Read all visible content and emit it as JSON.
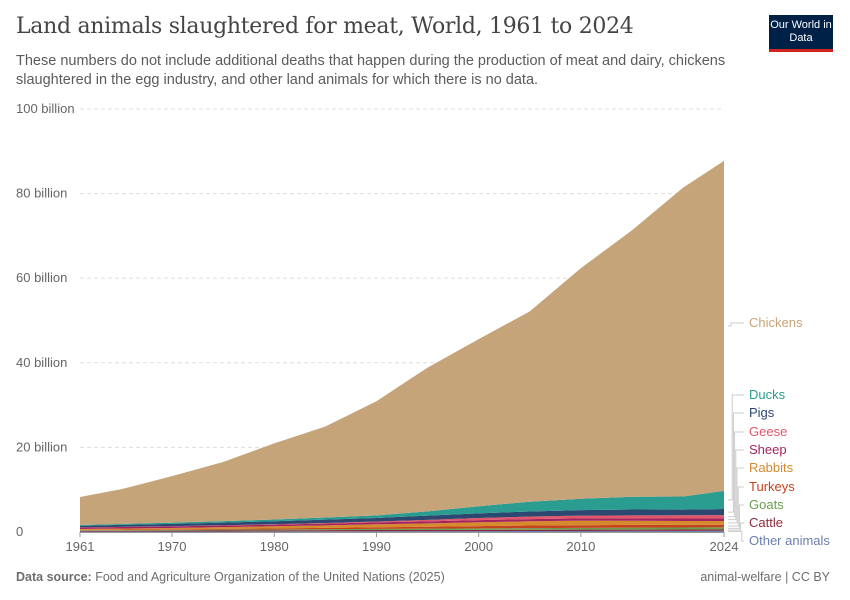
{
  "header": {
    "title": "Land animals slaughtered for meat, World, 1961 to 2024",
    "subtitle": "These numbers do not include additional deaths that happen during the production of meat and dairy, chickens slaughtered in the egg industry, and other land animals for which there is no data.",
    "logo": "Our World in Data"
  },
  "footer": {
    "source_label": "Data source:",
    "source": "Food and Agriculture Organization of the United Nations (2025)",
    "license": "animal-welfare | CC BY"
  },
  "chart_data": {
    "type": "area",
    "stacked": true,
    "title": "Land animals slaughtered for meat, World, 1961 to 2024",
    "xlabel": "",
    "ylabel": "",
    "unit": "billion",
    "ylim": [
      0,
      100
    ],
    "grid": true,
    "legend": "right",
    "y_ticks": [
      {
        "v": 0,
        "label": "0"
      },
      {
        "v": 20,
        "label": "20 billion"
      },
      {
        "v": 40,
        "label": "40 billion"
      },
      {
        "v": 60,
        "label": "60 billion"
      },
      {
        "v": 80,
        "label": "80 billion"
      },
      {
        "v": 100,
        "label": "100 billion"
      }
    ],
    "x_ticks": [
      "1961",
      "1970",
      "1980",
      "1990",
      "2000",
      "2010",
      "2024"
    ],
    "x": [
      1961,
      1965,
      1970,
      1975,
      1980,
      1985,
      1990,
      1995,
      2000,
      2005,
      2010,
      2015,
      2020,
      2024
    ],
    "series": [
      {
        "name": "Other animals",
        "color": "#6b7fae",
        "values": [
          0.1,
          0.1,
          0.12,
          0.13,
          0.15,
          0.17,
          0.19,
          0.2,
          0.22,
          0.24,
          0.25,
          0.27,
          0.28,
          0.3
        ]
      },
      {
        "name": "Cattle",
        "color": "#8c2a3c",
        "values": [
          0.17,
          0.19,
          0.21,
          0.23,
          0.24,
          0.26,
          0.28,
          0.28,
          0.29,
          0.3,
          0.3,
          0.3,
          0.3,
          0.31
        ]
      },
      {
        "name": "Goats",
        "color": "#6d9c4e",
        "values": [
          0.14,
          0.15,
          0.17,
          0.19,
          0.21,
          0.24,
          0.27,
          0.31,
          0.34,
          0.39,
          0.42,
          0.45,
          0.48,
          0.5
        ]
      },
      {
        "name": "Turkeys",
        "color": "#c4431d",
        "values": [
          0.1,
          0.13,
          0.16,
          0.2,
          0.25,
          0.3,
          0.38,
          0.45,
          0.55,
          0.6,
          0.62,
          0.65,
          0.64,
          0.6
        ]
      },
      {
        "name": "Rabbits",
        "color": "#d58a2d",
        "values": [
          0.2,
          0.25,
          0.3,
          0.4,
          0.5,
          0.6,
          0.7,
          0.8,
          0.9,
          1.0,
          1.1,
          1.0,
          0.9,
          0.9
        ]
      },
      {
        "name": "Sheep",
        "color": "#a2245f",
        "values": [
          0.33,
          0.35,
          0.38,
          0.38,
          0.38,
          0.42,
          0.45,
          0.48,
          0.5,
          0.52,
          0.53,
          0.56,
          0.6,
          0.62
        ]
      },
      {
        "name": "Geese",
        "color": "#e0566b",
        "values": [
          0.04,
          0.05,
          0.06,
          0.08,
          0.1,
          0.15,
          0.2,
          0.35,
          0.5,
          0.6,
          0.65,
          0.7,
          0.75,
          0.75
        ]
      },
      {
        "name": "Pigs",
        "color": "#2c4770",
        "values": [
          0.38,
          0.45,
          0.52,
          0.6,
          0.72,
          0.8,
          0.85,
          1.0,
          1.1,
          1.2,
          1.3,
          1.4,
          1.35,
          1.45
        ]
      },
      {
        "name": "Ducks",
        "color": "#2a9d90",
        "values": [
          0.2,
          0.23,
          0.3,
          0.35,
          0.4,
          0.5,
          0.6,
          1.0,
          1.7,
          2.3,
          2.7,
          3.0,
          3.1,
          4.3
        ]
      },
      {
        "name": "Chickens",
        "color": "#c6a47a",
        "values": [
          6.6,
          8.2,
          11.0,
          14.0,
          18.0,
          21.5,
          27.0,
          34.0,
          39.5,
          45.0,
          54.5,
          63.0,
          73.0,
          78.0
        ]
      }
    ]
  }
}
